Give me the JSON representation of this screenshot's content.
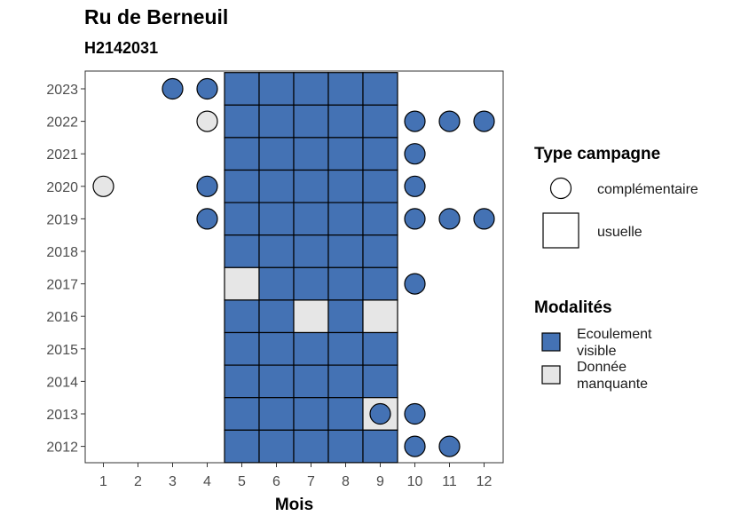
{
  "chart_data": {
    "type": "heatmap",
    "title": "Ru de Berneuil",
    "subtitle": "H2142031",
    "xlabel": "Mois",
    "ylabel": "",
    "x": [
      1,
      2,
      3,
      4,
      5,
      6,
      7,
      8,
      9,
      10,
      11,
      12
    ],
    "y": [
      2023,
      2022,
      2021,
      2020,
      2019,
      2018,
      2017,
      2016,
      2015,
      2014,
      2013,
      2012
    ],
    "colors": {
      "Ecoulement visible": "#4472b4",
      "Donnée manquante": "#e6e6e6"
    },
    "legend_type": {
      "title": "Type campagne",
      "items": [
        {
          "label": "complémentaire",
          "shape": "circle"
        },
        {
          "label": "usuelle",
          "shape": "square"
        }
      ]
    },
    "legend_modalites": {
      "title": "Modalités",
      "items": [
        {
          "label": [
            "Ecoulement",
            "visible"
          ],
          "key": "Ecoulement visible"
        },
        {
          "label": [
            "Donnée",
            "manquante"
          ],
          "key": "Donnée manquante"
        }
      ]
    },
    "points": [
      {
        "year": 2023,
        "month": 3,
        "type": "complémentaire",
        "modalite": "Ecoulement visible"
      },
      {
        "year": 2023,
        "month": 4,
        "type": "complémentaire",
        "modalite": "Ecoulement visible"
      },
      {
        "year": 2023,
        "month": 5,
        "type": "usuelle",
        "modalite": "Ecoulement visible"
      },
      {
        "year": 2023,
        "month": 6,
        "type": "usuelle",
        "modalite": "Ecoulement visible"
      },
      {
        "year": 2023,
        "month": 7,
        "type": "usuelle",
        "modalite": "Ecoulement visible"
      },
      {
        "year": 2023,
        "month": 8,
        "type": "usuelle",
        "modalite": "Ecoulement visible"
      },
      {
        "year": 2023,
        "month": 9,
        "type": "usuelle",
        "modalite": "Ecoulement visible"
      },
      {
        "year": 2022,
        "month": 4,
        "type": "complémentaire",
        "modalite": "Donnée manquante"
      },
      {
        "year": 2022,
        "month": 5,
        "type": "usuelle",
        "modalite": "Ecoulement visible"
      },
      {
        "year": 2022,
        "month": 6,
        "type": "usuelle",
        "modalite": "Ecoulement visible"
      },
      {
        "year": 2022,
        "month": 7,
        "type": "usuelle",
        "modalite": "Ecoulement visible"
      },
      {
        "year": 2022,
        "month": 8,
        "type": "usuelle",
        "modalite": "Ecoulement visible"
      },
      {
        "year": 2022,
        "month": 9,
        "type": "usuelle",
        "modalite": "Ecoulement visible"
      },
      {
        "year": 2022,
        "month": 10,
        "type": "complémentaire",
        "modalite": "Ecoulement visible"
      },
      {
        "year": 2022,
        "month": 11,
        "type": "complémentaire",
        "modalite": "Ecoulement visible"
      },
      {
        "year": 2022,
        "month": 12,
        "type": "complémentaire",
        "modalite": "Ecoulement visible"
      },
      {
        "year": 2021,
        "month": 5,
        "type": "usuelle",
        "modalite": "Ecoulement visible"
      },
      {
        "year": 2021,
        "month": 6,
        "type": "usuelle",
        "modalite": "Ecoulement visible"
      },
      {
        "year": 2021,
        "month": 7,
        "type": "usuelle",
        "modalite": "Ecoulement visible"
      },
      {
        "year": 2021,
        "month": 8,
        "type": "usuelle",
        "modalite": "Ecoulement visible"
      },
      {
        "year": 2021,
        "month": 9,
        "type": "usuelle",
        "modalite": "Ecoulement visible"
      },
      {
        "year": 2021,
        "month": 10,
        "type": "complémentaire",
        "modalite": "Ecoulement visible"
      },
      {
        "year": 2020,
        "month": 1,
        "type": "complémentaire",
        "modalite": "Donnée manquante"
      },
      {
        "year": 2020,
        "month": 4,
        "type": "complémentaire",
        "modalite": "Ecoulement visible"
      },
      {
        "year": 2020,
        "month": 5,
        "type": "usuelle",
        "modalite": "Ecoulement visible"
      },
      {
        "year": 2020,
        "month": 6,
        "type": "usuelle",
        "modalite": "Ecoulement visible"
      },
      {
        "year": 2020,
        "month": 7,
        "type": "usuelle",
        "modalite": "Ecoulement visible"
      },
      {
        "year": 2020,
        "month": 8,
        "type": "usuelle",
        "modalite": "Ecoulement visible"
      },
      {
        "year": 2020,
        "month": 9,
        "type": "usuelle",
        "modalite": "Ecoulement visible"
      },
      {
        "year": 2020,
        "month": 10,
        "type": "complémentaire",
        "modalite": "Ecoulement visible"
      },
      {
        "year": 2019,
        "month": 4,
        "type": "complémentaire",
        "modalite": "Ecoulement visible"
      },
      {
        "year": 2019,
        "month": 5,
        "type": "usuelle",
        "modalite": "Ecoulement visible"
      },
      {
        "year": 2019,
        "month": 6,
        "type": "usuelle",
        "modalite": "Ecoulement visible"
      },
      {
        "year": 2019,
        "month": 7,
        "type": "usuelle",
        "modalite": "Ecoulement visible"
      },
      {
        "year": 2019,
        "month": 8,
        "type": "usuelle",
        "modalite": "Ecoulement visible"
      },
      {
        "year": 2019,
        "month": 9,
        "type": "usuelle",
        "modalite": "Ecoulement visible"
      },
      {
        "year": 2019,
        "month": 10,
        "type": "complémentaire",
        "modalite": "Ecoulement visible"
      },
      {
        "year": 2019,
        "month": 11,
        "type": "complémentaire",
        "modalite": "Ecoulement visible"
      },
      {
        "year": 2019,
        "month": 12,
        "type": "complémentaire",
        "modalite": "Ecoulement visible"
      },
      {
        "year": 2018,
        "month": 5,
        "type": "usuelle",
        "modalite": "Ecoulement visible"
      },
      {
        "year": 2018,
        "month": 6,
        "type": "usuelle",
        "modalite": "Ecoulement visible"
      },
      {
        "year": 2018,
        "month": 7,
        "type": "usuelle",
        "modalite": "Ecoulement visible"
      },
      {
        "year": 2018,
        "month": 8,
        "type": "usuelle",
        "modalite": "Ecoulement visible"
      },
      {
        "year": 2018,
        "month": 9,
        "type": "usuelle",
        "modalite": "Ecoulement visible"
      },
      {
        "year": 2017,
        "month": 5,
        "type": "usuelle",
        "modalite": "Donnée manquante"
      },
      {
        "year": 2017,
        "month": 6,
        "type": "usuelle",
        "modalite": "Ecoulement visible"
      },
      {
        "year": 2017,
        "month": 7,
        "type": "usuelle",
        "modalite": "Ecoulement visible"
      },
      {
        "year": 2017,
        "month": 8,
        "type": "usuelle",
        "modalite": "Ecoulement visible"
      },
      {
        "year": 2017,
        "month": 9,
        "type": "usuelle",
        "modalite": "Ecoulement visible"
      },
      {
        "year": 2017,
        "month": 10,
        "type": "complémentaire",
        "modalite": "Ecoulement visible"
      },
      {
        "year": 2016,
        "month": 5,
        "type": "usuelle",
        "modalite": "Ecoulement visible"
      },
      {
        "year": 2016,
        "month": 6,
        "type": "usuelle",
        "modalite": "Ecoulement visible"
      },
      {
        "year": 2016,
        "month": 7,
        "type": "usuelle",
        "modalite": "Donnée manquante"
      },
      {
        "year": 2016,
        "month": 8,
        "type": "usuelle",
        "modalite": "Ecoulement visible"
      },
      {
        "year": 2016,
        "month": 9,
        "type": "usuelle",
        "modalite": "Donnée manquante"
      },
      {
        "year": 2015,
        "month": 5,
        "type": "usuelle",
        "modalite": "Ecoulement visible"
      },
      {
        "year": 2015,
        "month": 6,
        "type": "usuelle",
        "modalite": "Ecoulement visible"
      },
      {
        "year": 2015,
        "month": 7,
        "type": "usuelle",
        "modalite": "Ecoulement visible"
      },
      {
        "year": 2015,
        "month": 8,
        "type": "usuelle",
        "modalite": "Ecoulement visible"
      },
      {
        "year": 2015,
        "month": 9,
        "type": "usuelle",
        "modalite": "Ecoulement visible"
      },
      {
        "year": 2014,
        "month": 5,
        "type": "usuelle",
        "modalite": "Ecoulement visible"
      },
      {
        "year": 2014,
        "month": 6,
        "type": "usuelle",
        "modalite": "Ecoulement visible"
      },
      {
        "year": 2014,
        "month": 7,
        "type": "usuelle",
        "modalite": "Ecoulement visible"
      },
      {
        "year": 2014,
        "month": 8,
        "type": "usuelle",
        "modalite": "Ecoulement visible"
      },
      {
        "year": 2014,
        "month": 9,
        "type": "usuelle",
        "modalite": "Ecoulement visible"
      },
      {
        "year": 2013,
        "month": 5,
        "type": "usuelle",
        "modalite": "Ecoulement visible"
      },
      {
        "year": 2013,
        "month": 6,
        "type": "usuelle",
        "modalite": "Ecoulement visible"
      },
      {
        "year": 2013,
        "month": 7,
        "type": "usuelle",
        "modalite": "Ecoulement visible"
      },
      {
        "year": 2013,
        "month": 8,
        "type": "usuelle",
        "modalite": "Ecoulement visible"
      },
      {
        "year": 2013,
        "month": 9,
        "type": "usuelle",
        "modalite": "Donnée manquante"
      },
      {
        "year": 2013,
        "month": 9,
        "type": "complémentaire",
        "modalite": "Ecoulement visible"
      },
      {
        "year": 2013,
        "month": 10,
        "type": "complémentaire",
        "modalite": "Ecoulement visible"
      },
      {
        "year": 2012,
        "month": 5,
        "type": "usuelle",
        "modalite": "Ecoulement visible"
      },
      {
        "year": 2012,
        "month": 6,
        "type": "usuelle",
        "modalite": "Ecoulement visible"
      },
      {
        "year": 2012,
        "month": 7,
        "type": "usuelle",
        "modalite": "Ecoulement visible"
      },
      {
        "year": 2012,
        "month": 8,
        "type": "usuelle",
        "modalite": "Ecoulement visible"
      },
      {
        "year": 2012,
        "month": 9,
        "type": "usuelle",
        "modalite": "Ecoulement visible"
      },
      {
        "year": 2012,
        "month": 10,
        "type": "complémentaire",
        "modalite": "Ecoulement visible"
      },
      {
        "year": 2012,
        "month": 11,
        "type": "complémentaire",
        "modalite": "Ecoulement visible"
      }
    ]
  }
}
